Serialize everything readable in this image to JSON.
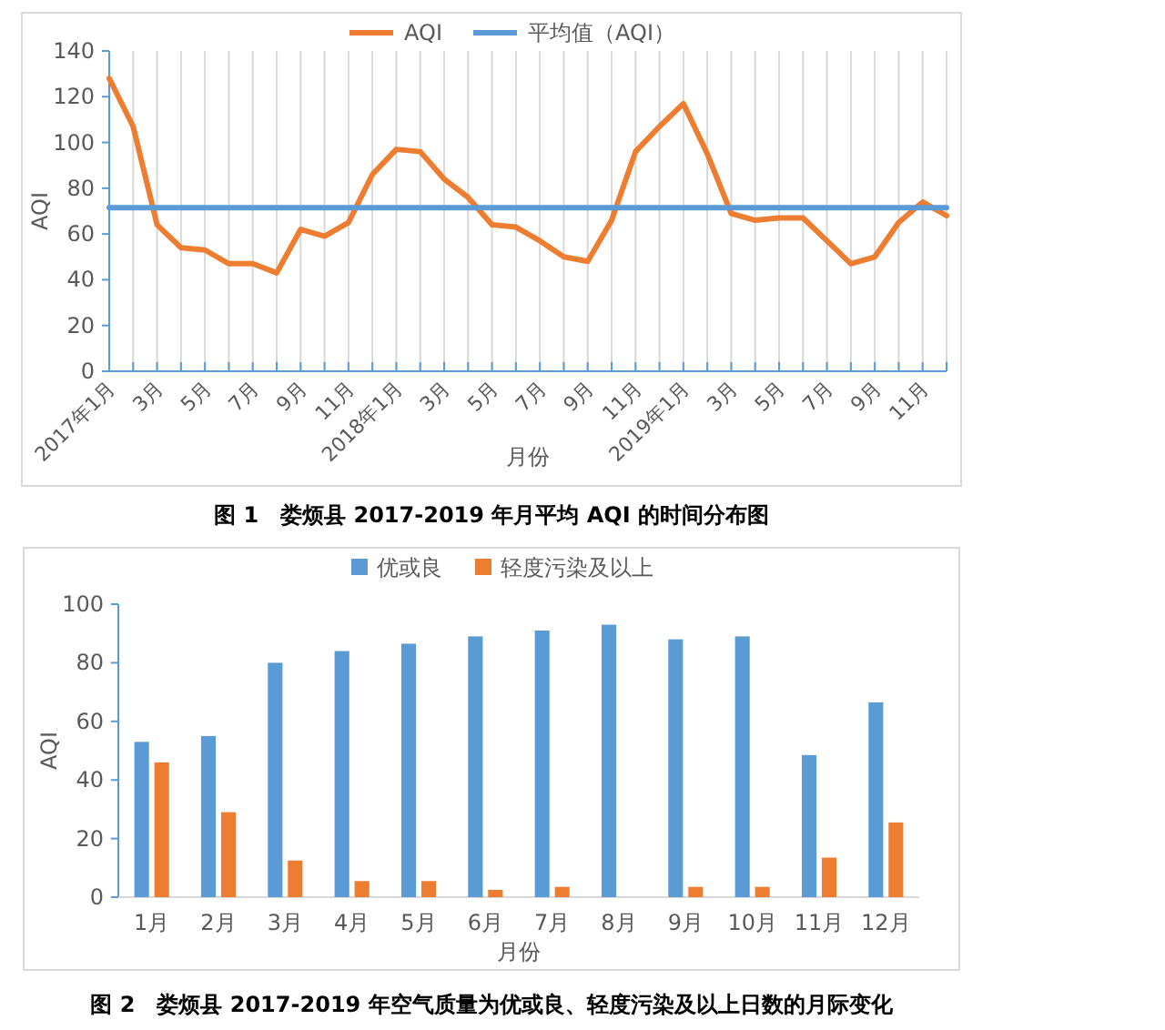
{
  "chart_data": [
    {
      "type": "line",
      "title": "图 1　娄烦县 2017-2019 年月平均 AQI 的时间分布图",
      "xlabel": "月份",
      "ylabel": "AQI",
      "categories": [
        "2017年1月",
        null,
        "3月",
        null,
        "5月",
        null,
        "7月",
        null,
        "9月",
        null,
        "11月",
        null,
        "2018年1月",
        null,
        "3月",
        null,
        "5月",
        null,
        "7月",
        null,
        "9月",
        null,
        "11月",
        null,
        "2019年1月",
        null,
        "3月",
        null,
        "5月",
        null,
        "7月",
        null,
        "9月",
        null,
        "11月",
        null
      ],
      "series": [
        {
          "name": "AQI",
          "color": "#ed7d31",
          "values": [
            128,
            107,
            64,
            54,
            53,
            47,
            47,
            43,
            62,
            59,
            65,
            86,
            97,
            96,
            84,
            76,
            64,
            63,
            57,
            50,
            48,
            66,
            96,
            107,
            117,
            95,
            69,
            66,
            67,
            67,
            57,
            47,
            50,
            65,
            74,
            68
          ]
        },
        {
          "name": "平均值（AQI）",
          "color": "#5b9bd5",
          "values": [
            71.5,
            71.5,
            71.5,
            71.5,
            71.5,
            71.5,
            71.5,
            71.5,
            71.5,
            71.5,
            71.5,
            71.5,
            71.5,
            71.5,
            71.5,
            71.5,
            71.5,
            71.5,
            71.5,
            71.5,
            71.5,
            71.5,
            71.5,
            71.5,
            71.5,
            71.5,
            71.5,
            71.5,
            71.5,
            71.5,
            71.5,
            71.5,
            71.5,
            71.5,
            71.5,
            71.5
          ]
        }
      ],
      "ylim": [
        0,
        140
      ],
      "yticks": [
        0,
        20,
        40,
        60,
        80,
        100,
        120,
        140
      ],
      "grid": "x",
      "legend": "top"
    },
    {
      "type": "bar",
      "title": "图 2　娄烦县 2017-2019 年空气质量为优或良、轻度污染及以上日数的月际变化",
      "xlabel": "月份",
      "ylabel": "AQI",
      "categories": [
        "1月",
        "2月",
        "3月",
        "4月",
        "5月",
        "6月",
        "7月",
        "8月",
        "9月",
        "10月",
        "11月",
        "12月"
      ],
      "series": [
        {
          "name": "优或良",
          "color": "#5b9bd5",
          "values": [
            53,
            55,
            80,
            84,
            86.5,
            89,
            91,
            93,
            88,
            89,
            48.5,
            66.5
          ]
        },
        {
          "name": "轻度污染及以上",
          "color": "#ed7d31",
          "values": [
            46,
            29,
            12.5,
            5.5,
            5.5,
            2.5,
            3.5,
            0,
            3.5,
            3.5,
            13.5,
            25.5
          ]
        }
      ],
      "ylim": [
        0,
        100
      ],
      "yticks": [
        0,
        20,
        40,
        60,
        80,
        100
      ],
      "legend": "top"
    }
  ]
}
